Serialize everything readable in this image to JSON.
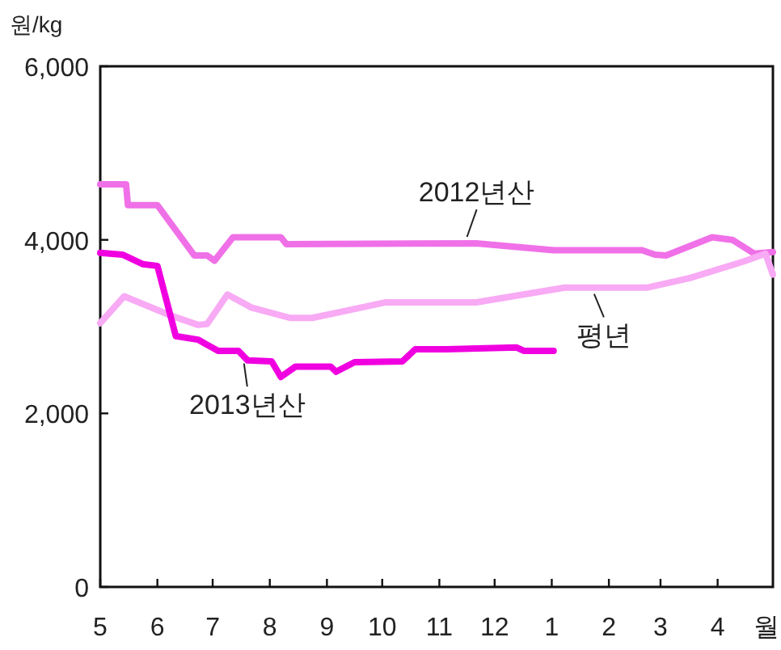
{
  "chart_data": {
    "type": "line",
    "ylabel": "원/kg",
    "xlabel": "월",
    "xlim": [
      "2013-05-01",
      "2014-05-01"
    ],
    "xticks": [
      {
        "value": "2013-05-01",
        "label": "5"
      },
      {
        "value": "2013-06-01",
        "label": "6"
      },
      {
        "value": "2013-07-01",
        "label": "7"
      },
      {
        "value": "2013-08-01",
        "label": "8"
      },
      {
        "value": "2013-09-01",
        "label": "9"
      },
      {
        "value": "2013-10-01",
        "label": "10"
      },
      {
        "value": "2013-11-01",
        "label": "11"
      },
      {
        "value": "2013-12-01",
        "label": "12"
      },
      {
        "value": "2014-01-01",
        "label": "1"
      },
      {
        "value": "2014-02-01",
        "label": "2"
      },
      {
        "value": "2014-03-01",
        "label": "3"
      },
      {
        "value": "2014-04-01",
        "label": "4"
      }
    ],
    "ylim": [
      0,
      6000
    ],
    "yticks": [
      0,
      {
        "value": 2000,
        "label": "2,000"
      },
      {
        "value": 4000,
        "label": "4,000"
      },
      {
        "value": 6000,
        "label": "6,000"
      }
    ],
    "grid": false,
    "marker": "none",
    "line_style": "solid",
    "series": [
      {
        "color": "#f070e8",
        "x": [
          "2013-05-01",
          "2013-05-15",
          "2013-05-16",
          "2013-06-01",
          "2013-06-21",
          "2013-06-28",
          "2013-07-02",
          "2013-07-12",
          "2013-08-07",
          "2013-08-10",
          "2013-11-21",
          "2014-01-02",
          "2014-02-19",
          "2014-02-26",
          "2014-03-04",
          "2014-03-29",
          "2014-04-09",
          "2014-04-21",
          "2014-05-01"
        ],
        "values": [
          4640,
          4640,
          4400,
          4400,
          3820,
          3820,
          3760,
          4030,
          4030,
          3950,
          3960,
          3880,
          3880,
          3830,
          3820,
          4030,
          4000,
          3840,
          3860
        ]
      },
      {
        "color": "#f8aaf4",
        "x": [
          "2013-05-01",
          "2013-05-14",
          "2013-06-08",
          "2013-06-23",
          "2013-06-28",
          "2013-07-09",
          "2013-07-22",
          "2013-08-12",
          "2013-08-24",
          "2013-09-13",
          "2013-10-03",
          "2013-11-05",
          "2013-11-21",
          "2014-01-08",
          "2014-02-22",
          "2014-03-17",
          "2014-04-15",
          "2014-04-27",
          "2014-05-01"
        ],
        "values": [
          3040,
          3350,
          3130,
          3020,
          3030,
          3370,
          3220,
          3100,
          3100,
          3190,
          3280,
          3280,
          3280,
          3450,
          3450,
          3560,
          3750,
          3840,
          3600
        ]
      },
      {
        "color": "#f000e0",
        "x": [
          "2013-05-01",
          "2013-05-13",
          "2013-05-24",
          "2013-06-01",
          "2013-06-11",
          "2013-06-23",
          "2013-07-04",
          "2013-07-15",
          "2013-07-20",
          "2013-08-02",
          "2013-08-07",
          "2013-08-15",
          "2013-09-03",
          "2013-09-06",
          "2013-09-16",
          "2013-10-12",
          "2013-10-19",
          "2013-11-05",
          "2013-12-13",
          "2013-12-17",
          "2014-01-02"
        ],
        "values": [
          3850,
          3830,
          3720,
          3700,
          2890,
          2850,
          2720,
          2720,
          2610,
          2600,
          2420,
          2540,
          2540,
          2480,
          2590,
          2600,
          2740,
          2740,
          2760,
          2720,
          2720
        ]
      }
    ],
    "annotations": [
      {
        "text": "2012년산",
        "x": "2013-11-16",
        "y": 3960
      },
      {
        "text": "평년",
        "x": "2014-01-24",
        "y": 3450
      },
      {
        "text": "2013년산",
        "x": "2013-07-18",
        "y": 2650
      }
    ]
  }
}
